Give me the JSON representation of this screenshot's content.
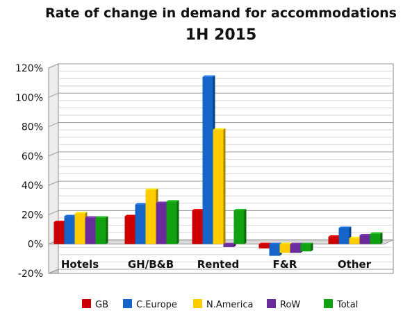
{
  "chart_data": {
    "type": "bar",
    "title": "Rate of change in demand for accommodations",
    "subtitle": "1H 2015",
    "categories": [
      "Hotels",
      "GH/B&B",
      "Rented",
      "F&R",
      "Other"
    ],
    "series": [
      {
        "name": "GB",
        "color": "#cc0000",
        "values": [
          15,
          19,
          23,
          -3,
          5
        ]
      },
      {
        "name": "C.Europe",
        "color": "#1565c8",
        "values": [
          19,
          27,
          114,
          -8,
          11
        ]
      },
      {
        "name": "N.America",
        "color": "#ffcc00",
        "values": [
          21,
          37,
          78,
          -6,
          4
        ]
      },
      {
        "name": "RoW",
        "color": "#6a2c9c",
        "values": [
          18,
          28,
          -2,
          -6,
          6
        ]
      },
      {
        "name": "Total",
        "color": "#11a011",
        "values": [
          18,
          29,
          23,
          -5,
          7
        ]
      }
    ],
    "ylim": [
      -20,
      120
    ],
    "yticks": [
      "-20%",
      "0%",
      "20%",
      "40%",
      "60%",
      "80%",
      "100%",
      "120%"
    ],
    "grid": true,
    "legend": "bottom"
  }
}
